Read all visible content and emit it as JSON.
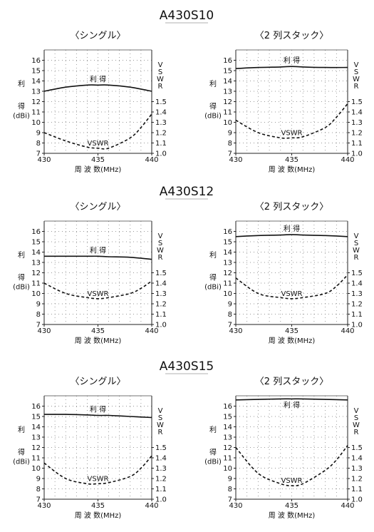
{
  "chart_data": [
    {
      "type": "line",
      "model": "A430S10",
      "title": "〈シングル〉",
      "xlabel": "周 波 数(MHz)",
      "ylabel_left": [
        "利",
        "得",
        "(dBi)"
      ],
      "ylabel_right": [
        "V",
        "S",
        "W",
        "R"
      ],
      "x_ticks": [
        430,
        435,
        440
      ],
      "y_left_ticks": [
        7,
        8,
        9,
        10,
        11,
        12,
        13,
        14,
        15,
        16
      ],
      "y_right_ticks": [
        "1.0",
        "1.1",
        "1.2",
        "1.3",
        "1.4",
        "1.5"
      ],
      "xlim": [
        430,
        440
      ],
      "ylim_left": [
        7,
        17
      ],
      "ylim_right": [
        1.0,
        1.5
      ],
      "grid": true,
      "series": [
        {
          "name": "利 得",
          "axis": "left",
          "style": "solid",
          "x": [
            430,
            432,
            434,
            435,
            436,
            438,
            440
          ],
          "values": [
            13.0,
            13.4,
            13.6,
            13.6,
            13.6,
            13.4,
            13.0
          ]
        },
        {
          "name": "VSWR",
          "axis": "right",
          "style": "dashed",
          "x": [
            430,
            432,
            434,
            435,
            436,
            438,
            439,
            440
          ],
          "values": [
            1.2,
            1.12,
            1.06,
            1.05,
            1.05,
            1.15,
            1.25,
            1.38
          ]
        }
      ]
    },
    {
      "type": "line",
      "model": "",
      "title": "〈2 列スタック〉",
      "xlabel": "周 波 数(MHz)",
      "ylabel_left": [
        "利",
        "得",
        "(dBi)"
      ],
      "ylabel_right": [
        "V",
        "S",
        "W",
        "R"
      ],
      "x_ticks": [
        430,
        435,
        440
      ],
      "y_left_ticks": [
        7,
        8,
        9,
        10,
        11,
        12,
        13,
        14,
        15,
        16
      ],
      "y_right_ticks": [
        "1.0",
        "1.1",
        "1.2",
        "1.3",
        "1.4",
        "1.5"
      ],
      "xlim": [
        430,
        440
      ],
      "ylim_left": [
        7,
        17
      ],
      "ylim_right": [
        1.0,
        1.5
      ],
      "grid": true,
      "series": [
        {
          "name": "利 得",
          "axis": "left",
          "style": "solid",
          "x": [
            430,
            432,
            434,
            435,
            436,
            438,
            440
          ],
          "values": [
            15.2,
            15.3,
            15.35,
            15.4,
            15.35,
            15.3,
            15.3
          ]
        },
        {
          "name": "VSWR",
          "axis": "right",
          "style": "dashed",
          "x": [
            430,
            432,
            434,
            435,
            436,
            438,
            439,
            440
          ],
          "values": [
            1.32,
            1.2,
            1.15,
            1.15,
            1.16,
            1.25,
            1.35,
            1.48
          ]
        }
      ]
    },
    {
      "type": "line",
      "model": "A430S12",
      "title": "〈シングル〉",
      "xlabel": "周 波 数(MHz)",
      "ylabel_left": [
        "利",
        "得",
        "(dBi)"
      ],
      "ylabel_right": [
        "V",
        "S",
        "W",
        "R"
      ],
      "x_ticks": [
        430,
        435,
        440
      ],
      "y_left_ticks": [
        7,
        8,
        9,
        10,
        11,
        12,
        13,
        14,
        15,
        16
      ],
      "y_right_ticks": [
        "1.0",
        "1.1",
        "1.2",
        "1.3",
        "1.4",
        "1.5"
      ],
      "xlim": [
        430,
        440
      ],
      "ylim_left": [
        7,
        17
      ],
      "ylim_right": [
        1.0,
        1.5
      ],
      "grid": true,
      "series": [
        {
          "name": "利 得",
          "axis": "left",
          "style": "solid",
          "x": [
            430,
            432,
            434,
            435,
            436,
            438,
            440
          ],
          "values": [
            13.6,
            13.6,
            13.6,
            13.6,
            13.55,
            13.5,
            13.3
          ]
        },
        {
          "name": "VSWR",
          "axis": "right",
          "style": "dashed",
          "x": [
            430,
            432,
            434,
            435,
            436,
            438,
            439,
            440
          ],
          "values": [
            1.4,
            1.3,
            1.26,
            1.25,
            1.26,
            1.3,
            1.35,
            1.42
          ]
        }
      ]
    },
    {
      "type": "line",
      "model": "",
      "title": "〈2 列スタック〉",
      "xlabel": "周 波 数(MHz)",
      "ylabel_left": [
        "利",
        "得",
        "(dBi)"
      ],
      "ylabel_right": [
        "V",
        "S",
        "W",
        "R"
      ],
      "x_ticks": [
        430,
        435,
        440
      ],
      "y_left_ticks": [
        7,
        8,
        9,
        10,
        11,
        12,
        13,
        14,
        15,
        16
      ],
      "y_right_ticks": [
        "1.0",
        "1.1",
        "1.2",
        "1.3",
        "1.4",
        "1.5"
      ],
      "xlim": [
        430,
        440
      ],
      "ylim_left": [
        7,
        17
      ],
      "ylim_right": [
        1.0,
        1.5
      ],
      "grid": true,
      "series": [
        {
          "name": "利 得",
          "axis": "left",
          "style": "solid",
          "x": [
            430,
            432,
            434,
            435,
            436,
            438,
            440
          ],
          "values": [
            15.5,
            15.6,
            15.65,
            15.7,
            15.65,
            15.6,
            15.5
          ]
        },
        {
          "name": "VSWR",
          "axis": "right",
          "style": "dashed",
          "x": [
            430,
            432,
            434,
            435,
            436,
            438,
            439,
            440
          ],
          "values": [
            1.45,
            1.3,
            1.26,
            1.25,
            1.26,
            1.3,
            1.37,
            1.48
          ]
        }
      ]
    },
    {
      "type": "line",
      "model": "A430S15",
      "title": "〈シングル〉",
      "xlabel": "周 波 数(MHz)",
      "ylabel_left": [
        "利",
        "得",
        "(dBi)"
      ],
      "ylabel_right": [
        "V",
        "S",
        "W",
        "R"
      ],
      "x_ticks": [
        430,
        435,
        440
      ],
      "y_left_ticks": [
        7,
        8,
        9,
        10,
        11,
        12,
        13,
        14,
        15,
        16
      ],
      "y_right_ticks": [
        "1.0",
        "1.1",
        "1.2",
        "1.3",
        "1.4",
        "1.5"
      ],
      "xlim": [
        430,
        440
      ],
      "ylim_left": [
        7,
        17
      ],
      "ylim_right": [
        1.0,
        1.5
      ],
      "grid": true,
      "series": [
        {
          "name": "利 得",
          "axis": "left",
          "style": "solid",
          "x": [
            430,
            432,
            434,
            435,
            436,
            438,
            440
          ],
          "values": [
            15.2,
            15.2,
            15.15,
            15.1,
            15.1,
            15.0,
            14.9
          ]
        },
        {
          "name": "VSWR",
          "axis": "right",
          "style": "dashed",
          "x": [
            430,
            432,
            434,
            435,
            436,
            438,
            439,
            440
          ],
          "values": [
            1.35,
            1.2,
            1.15,
            1.15,
            1.16,
            1.22,
            1.3,
            1.42
          ]
        }
      ]
    },
    {
      "type": "line",
      "model": "",
      "title": "〈2 列スタック〉",
      "xlabel": "周 波 数(MHz)",
      "ylabel_left": [
        "利",
        "得",
        "(dBi)"
      ],
      "ylabel_right": [
        "V",
        "S",
        "W",
        "R"
      ],
      "x_ticks": [
        430,
        435,
        440
      ],
      "y_left_ticks": [
        7,
        8,
        9,
        10,
        11,
        12,
        13,
        14,
        15,
        16
      ],
      "y_right_ticks": [
        "1.0",
        "1.1",
        "1.2",
        "1.3",
        "1.4",
        "1.5"
      ],
      "xlim": [
        430,
        440
      ],
      "ylim_left": [
        7,
        17
      ],
      "ylim_right": [
        1.0,
        1.5
      ],
      "grid": true,
      "series": [
        {
          "name": "利 得",
          "axis": "left",
          "style": "solid",
          "x": [
            430,
            432,
            434,
            435,
            436,
            438,
            440
          ],
          "values": [
            16.6,
            16.65,
            16.7,
            16.7,
            16.7,
            16.65,
            16.6
          ]
        },
        {
          "name": "VSWR",
          "axis": "right",
          "style": "dashed",
          "x": [
            430,
            432,
            434,
            435,
            436,
            438,
            439,
            440
          ],
          "values": [
            1.5,
            1.25,
            1.15,
            1.13,
            1.15,
            1.28,
            1.38,
            1.52
          ]
        }
      ]
    }
  ]
}
